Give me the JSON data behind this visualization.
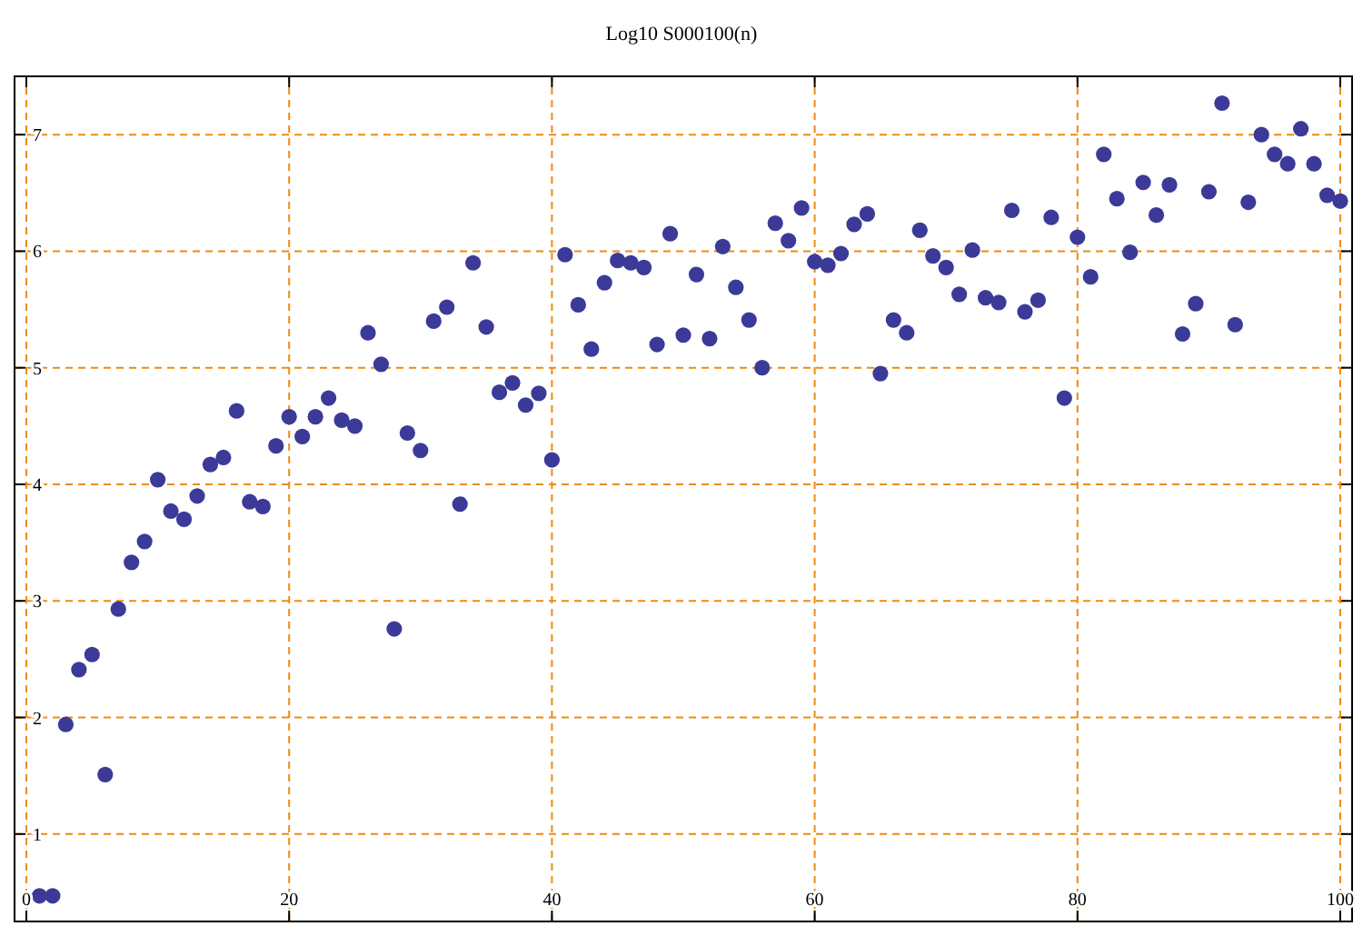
{
  "chart_data": {
    "type": "scatter",
    "title": "Log10 S000100(n)",
    "x": [
      1,
      2,
      3,
      4,
      5,
      6,
      7,
      8,
      9,
      10,
      11,
      12,
      13,
      14,
      15,
      16,
      17,
      18,
      19,
      20,
      21,
      22,
      23,
      24,
      25,
      26,
      27,
      28,
      29,
      30,
      31,
      32,
      33,
      34,
      35,
      36,
      37,
      38,
      39,
      40,
      41,
      42,
      43,
      44,
      45,
      46,
      47,
      48,
      49,
      50,
      51,
      52,
      53,
      54,
      55,
      56,
      57,
      58,
      59,
      60,
      61,
      62,
      63,
      64,
      65,
      66,
      67,
      68,
      69,
      70,
      71,
      72,
      73,
      74,
      75,
      76,
      77,
      78,
      79,
      80,
      81,
      82,
      83,
      84,
      85,
      86,
      87,
      88,
      89,
      90,
      91,
      92,
      93,
      94,
      95,
      96,
      97,
      98,
      99,
      100
    ],
    "series": [
      {
        "color": "#3b3a98",
        "values": [
          0.47,
          0.47,
          1.94,
          2.41,
          2.54,
          1.51,
          2.93,
          3.33,
          3.51,
          4.04,
          3.77,
          3.7,
          3.9,
          4.17,
          4.23,
          4.63,
          3.85,
          3.81,
          4.33,
          4.58,
          4.41,
          4.58,
          4.74,
          4.55,
          4.5,
          5.3,
          5.03,
          2.76,
          4.44,
          4.29,
          5.4,
          5.52,
          3.83,
          5.9,
          5.35,
          4.79,
          4.87,
          4.68,
          4.78,
          4.21,
          5.97,
          5.54,
          5.16,
          5.73,
          5.92,
          5.9,
          5.86,
          5.2,
          6.15,
          5.28,
          5.8,
          5.25,
          6.04,
          5.69,
          5.41,
          5.0,
          6.24,
          6.09,
          6.37,
          5.91,
          5.88,
          5.98,
          6.23,
          6.32,
          4.95,
          5.41,
          5.3,
          6.18,
          5.96,
          5.86,
          5.63,
          6.01,
          5.6,
          5.56,
          6.35,
          5.48,
          5.58,
          6.29,
          4.74,
          6.12,
          5.78,
          6.83,
          6.45,
          5.99,
          6.59,
          6.31,
          6.57,
          5.29,
          5.55,
          6.51,
          7.27,
          5.37,
          6.42,
          7.0,
          6.83,
          6.75,
          7.05,
          6.75,
          6.48,
          6.43
        ]
      }
    ],
    "xlim": [
      -0.9,
      100.9
    ],
    "ylim": [
      0.25,
      7.5
    ],
    "xticks": [
      0,
      20,
      40,
      60,
      80,
      100
    ],
    "yticks": [
      1,
      2,
      3,
      4,
      5,
      6,
      7
    ],
    "grid": true,
    "marker": "circle"
  }
}
